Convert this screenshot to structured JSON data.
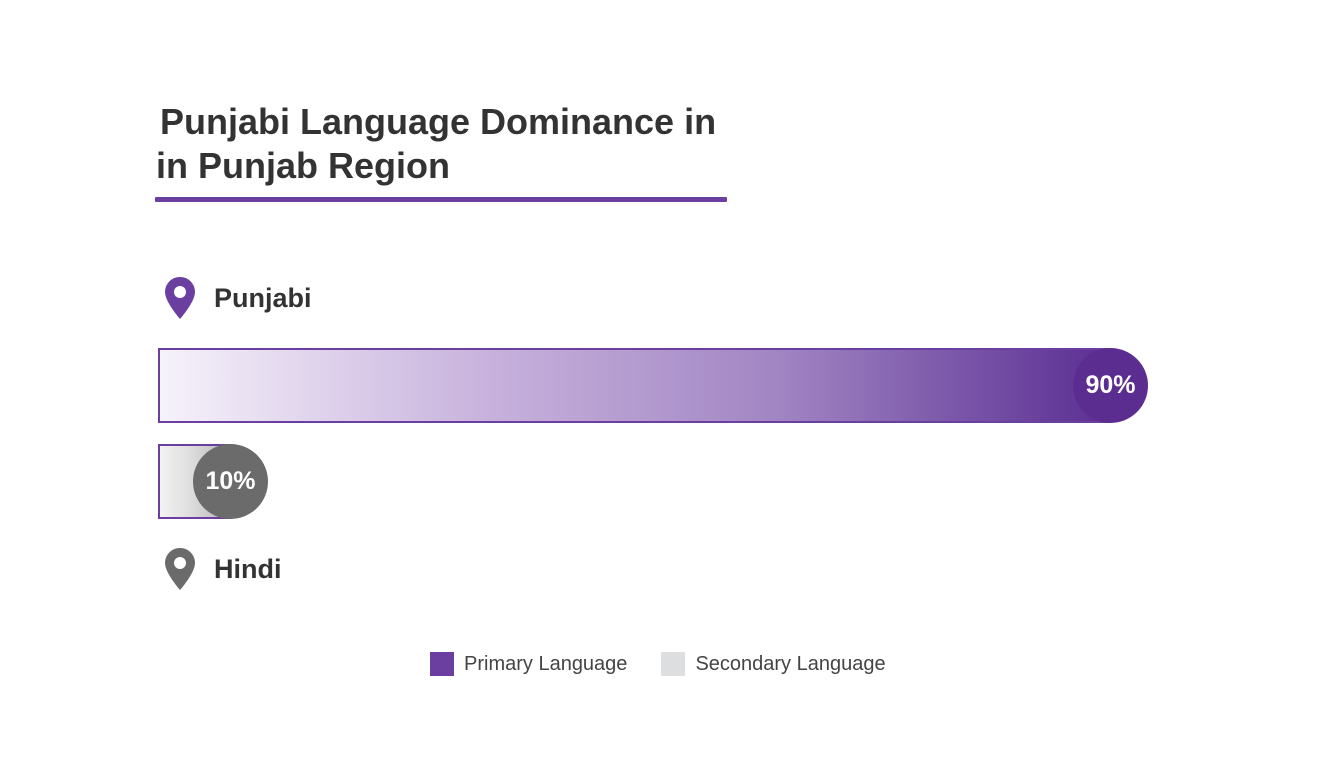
{
  "chart_data": {
    "type": "bar",
    "orientation": "horizontal",
    "title": "Punjabi Language Dominance in in Punjab Region",
    "title_lines": [
      "Punjabi Language Dominance in",
      "in Punjab Region"
    ],
    "categories": [
      "Punjabi",
      "Hindi"
    ],
    "values": [
      90,
      10
    ],
    "value_labels": [
      "90%",
      "10%"
    ],
    "unit": "%",
    "xlim": [
      0,
      100
    ],
    "grid": false,
    "legend": {
      "position": "bottom-center",
      "items": [
        {
          "label": "Primary Language",
          "color": "#6a3fa0"
        },
        {
          "label": "Secondary Language",
          "color": "#dcdedf"
        }
      ]
    },
    "colors": {
      "primary": "#5b2d90",
      "secondary": "#6b6b6b",
      "accent": "#6a3fa0"
    },
    "icons": [
      "location-pin-icon",
      "location-pin-icon"
    ]
  }
}
